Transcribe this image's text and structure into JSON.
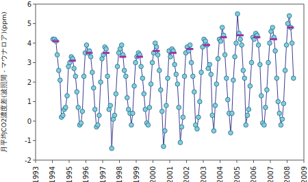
{
  "chart_data": {
    "type": "scatter",
    "y_label": "月平均CO2濃度差(波照間 - マウナロア)(ppm)",
    "xlim": [
      1993,
      2009
    ],
    "xticks": [
      1993,
      1994,
      1995,
      1996,
      1997,
      1998,
      1999,
      2000,
      2001,
      2002,
      2003,
      2004,
      2005,
      2006,
      2007,
      2008,
      2009
    ],
    "ylim": [
      -2,
      6
    ],
    "yticks": [
      -2,
      -1,
      0,
      1,
      2,
      3,
      4,
      5,
      6
    ],
    "grid": false,
    "series": [
      {
        "type": "line",
        "color": "#7fd0d8",
        "marker": "circle",
        "line_style": "solid",
        "x": [
          1994.04,
          1994.13,
          1994.21,
          1994.29,
          1994.38,
          1994.46,
          1994.54,
          1994.63,
          1994.71,
          1994.79,
          1994.88,
          1994.96,
          1995.04,
          1995.13,
          1995.21,
          1995.29,
          1995.38,
          1995.46,
          1995.54,
          1995.63,
          1995.71,
          1995.79,
          1995.88,
          1995.96,
          1996.04,
          1996.13,
          1996.21,
          1996.29,
          1996.38,
          1996.46,
          1996.54,
          1996.63,
          1996.71,
          1996.79,
          1996.88,
          1996.96,
          1997.04,
          1997.13,
          1997.21,
          1997.29,
          1997.38,
          1997.46,
          1997.54,
          1997.63,
          1997.71,
          1997.79,
          1997.88,
          1997.96,
          1998.04,
          1998.13,
          1998.21,
          1998.29,
          1998.38,
          1998.46,
          1998.54,
          1998.63,
          1998.71,
          1998.79,
          1998.88,
          1998.96,
          1999.04,
          1999.13,
          1999.21,
          1999.29,
          1999.38,
          1999.46,
          1999.54,
          1999.63,
          1999.71,
          1999.79,
          1999.88,
          1999.96,
          2000.04,
          2000.13,
          2000.21,
          2000.29,
          2000.38,
          2000.46,
          2000.54,
          2000.63,
          2000.71,
          2000.79,
          2000.88,
          2000.96,
          2001.04,
          2001.13,
          2001.21,
          2001.29,
          2001.38,
          2001.46,
          2001.54,
          2001.63,
          2001.71,
          2001.79,
          2001.88,
          2001.96,
          2002.04,
          2002.13,
          2002.21,
          2002.29,
          2002.38,
          2002.46,
          2002.54,
          2002.63,
          2002.71,
          2002.79,
          2002.88,
          2002.96,
          2003.04,
          2003.13,
          2003.21,
          2003.29,
          2003.38,
          2003.46,
          2003.54,
          2003.63,
          2003.71,
          2003.79,
          2003.88,
          2003.96,
          2004.04,
          2004.13,
          2004.21,
          2004.29,
          2004.38,
          2004.46,
          2004.54,
          2004.63,
          2004.71,
          2004.79,
          2004.88,
          2004.96,
          2005.04,
          2005.13,
          2005.21,
          2005.29,
          2005.38,
          2005.46,
          2005.54,
          2005.63,
          2005.71,
          2005.79,
          2005.88,
          2005.96,
          2006.04,
          2006.13,
          2006.21,
          2006.29,
          2006.38,
          2006.46,
          2006.54,
          2006.63,
          2006.71,
          2006.79,
          2006.88,
          2006.96,
          2007.04,
          2007.13,
          2007.21,
          2007.29,
          2007.38,
          2007.46,
          2007.54,
          2007.63,
          2007.71,
          2007.79,
          2007.88,
          2007.96,
          2008.04,
          2008.13,
          2008.21,
          2008.29,
          2008.38
        ],
        "values": [
          4.2,
          4.2,
          4.1,
          3.4,
          2.6,
          2.1,
          0.2,
          0.3,
          0.6,
          0.7,
          1.3,
          2.8,
          3.0,
          3.3,
          3.2,
          2.7,
          2.3,
          1.5,
          0.7,
          -0.2,
          -0.1,
          0.5,
          2.3,
          3.5,
          3.9,
          3.5,
          3.6,
          3.3,
          2.5,
          1.7,
          0.6,
          -0.3,
          -0.2,
          0.3,
          2.0,
          3.2,
          3.4,
          3.8,
          3.7,
          2.3,
          0.6,
          0.8,
          -1.4,
          0.1,
          0.3,
          1.4,
          2.8,
          3.5,
          3.7,
          3.9,
          3.4,
          2.6,
          2.3,
          1.2,
          0.6,
          0.4,
          -0.2,
          0.4,
          1.8,
          3.0,
          3.3,
          3.5,
          3.4,
          2.8,
          2.2,
          1.4,
          0.6,
          -0.1,
          -0.2,
          0.7,
          1.9,
          3.0,
          3.5,
          4.0,
          3.8,
          3.4,
          2.6,
          1.6,
          0.5,
          -1.3,
          -0.5,
          0.8,
          2.2,
          3.6,
          3.3,
          3.7,
          3.6,
          2.9,
          2.4,
          1.9,
          0.7,
          -1.1,
          -0.3,
          0.2,
          2.3,
          3.5,
          3.8,
          3.6,
          3.9,
          3.0,
          2.3,
          1.5,
          -0.2,
          -0.4,
          0.2,
          1.0,
          2.5,
          3.8,
          4.2,
          4.1,
          3.9,
          2.7,
          2.9,
          2.4,
          0.3,
          -0.5,
          0.8,
          1.9,
          3.2,
          4.2,
          4.1,
          4.8,
          4.4,
          3.4,
          2.2,
          1.1,
          0.4,
          -0.6,
          0.4,
          2.1,
          3.3,
          4.0,
          5.5,
          4.5,
          4.2,
          3.9,
          2.6,
          2.2,
          -0.2,
          0.3,
          0.6,
          1.8,
          3.0,
          4.3,
          4.2,
          4.5,
          4.4,
          3.9,
          2.9,
          1.3,
          -0.1,
          -0.2,
          0.7,
          1.6,
          3.0,
          4.0,
          4.6,
          4.8,
          4.3,
          3.6,
          2.2,
          1.0,
          0.4,
          -0.2,
          0.1,
          0.9,
          2.6,
          3.9,
          5.0,
          5.4,
          4.8,
          4.0,
          2.2
        ]
      },
      {
        "type": "scatter",
        "color": "#9b30a8",
        "marker": "dash",
        "x": [
          1994.2,
          1995.2,
          1996.2,
          1997.2,
          1998.2,
          1999.2,
          2000.2,
          2001.2,
          2002.2,
          2003.2,
          2004.2,
          2005.2,
          2006.2,
          2007.2,
          2008.2
        ],
        "values": [
          4.1,
          3.1,
          3.5,
          3.5,
          3.3,
          3.3,
          3.6,
          3.5,
          3.7,
          3.9,
          4.3,
          4.4,
          4.3,
          4.2,
          4.8
        ]
      }
    ]
  }
}
